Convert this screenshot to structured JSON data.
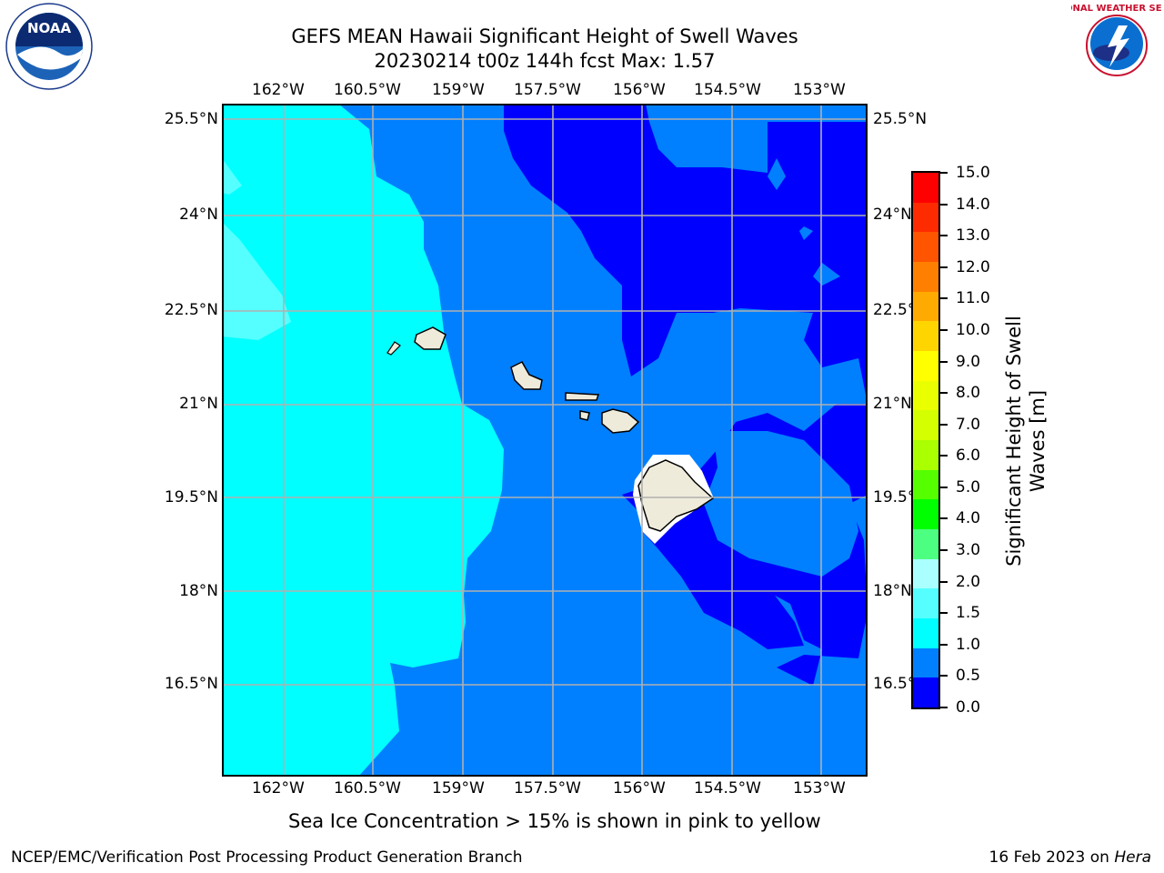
{
  "title": {
    "line1": "GEFS MEAN Hawaii Significant Height of Swell Waves",
    "line2": "20230214 t00z 144h fcst   Max: 1.57"
  },
  "axes": {
    "lon_labels": [
      "162°W",
      "160.5°W",
      "159°W",
      "157.5°W",
      "156°W",
      "154.5°W",
      "153°W"
    ],
    "lat_labels_left": [
      "25.5°N",
      "24°N",
      "22.5°N",
      "21°N",
      "19.5°N",
      "18°N",
      "16.5°N"
    ],
    "lat_labels_right": [
      "25.5°N",
      "24°N",
      "22.5°N",
      "21°N",
      "19.5°N",
      "18°N",
      "16.5°N"
    ],
    "grid": true
  },
  "colorbar": {
    "label_line1": "Significant Height of Swell",
    "label_line2": "Waves [m]",
    "ticks": [
      "15.0",
      "14.0",
      "13.0",
      "12.0",
      "11.0",
      "10.0",
      "9.0",
      "8.0",
      "7.0",
      "6.0",
      "5.0",
      "4.0",
      "3.0",
      "2.0",
      "1.5",
      "1.0",
      "0.5",
      "0.0"
    ],
    "colors_top_to_bottom": [
      "#ff0000",
      "#ff2b00",
      "#ff5500",
      "#ff8000",
      "#ffaa00",
      "#ffd500",
      "#ffff00",
      "#eaff00",
      "#d4ff00",
      "#aaff00",
      "#55ff00",
      "#00ff00",
      "#4dff80",
      "#aaffff",
      "#55ffff",
      "#00ffff",
      "#0080ff",
      "#0000ff"
    ]
  },
  "map_colors": {
    "band_0_0.5": "#0000ff",
    "band_0.5_1.0": "#0080ff",
    "band_1.0_1.5": "#00ffff",
    "band_1.5_2.0": "#55ffff",
    "land": "#efebdb"
  },
  "caption": "Sea Ice Concentration > 15% is shown in pink to yellow",
  "footer": {
    "left": "NCEP/EMC/Verification Post Processing Product Generation Branch",
    "right_date": "16 Feb 2023 on ",
    "right_machine": "Hera"
  },
  "logos": {
    "noaa_text": "NOAA",
    "nws_text": "NATIONAL WEATHER SERVICE"
  }
}
